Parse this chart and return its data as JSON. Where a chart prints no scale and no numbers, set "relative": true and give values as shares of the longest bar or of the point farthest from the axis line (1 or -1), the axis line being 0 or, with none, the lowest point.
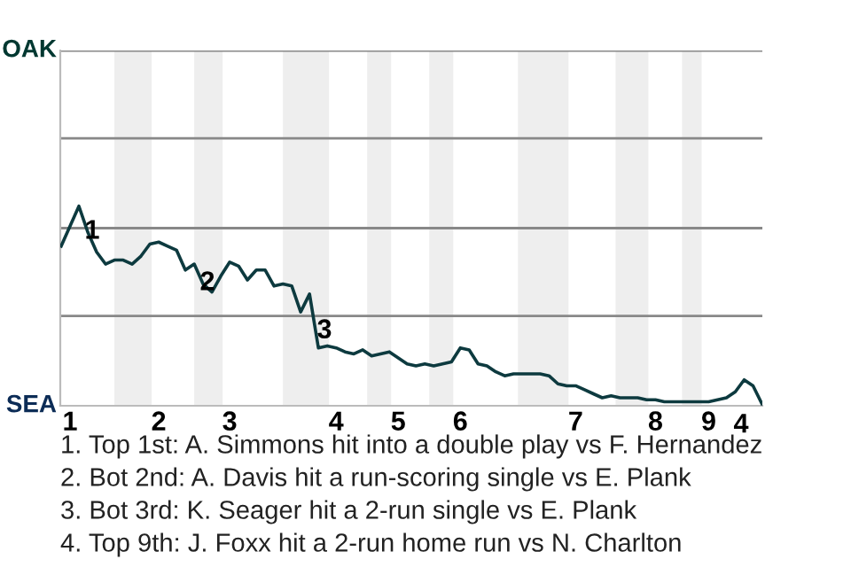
{
  "chart_data": {
    "type": "line",
    "relative": true,
    "categories": [
      null,
      "1",
      null,
      null,
      null,
      null,
      null,
      null,
      null,
      null,
      null,
      "2",
      null,
      null,
      null,
      null,
      null,
      null,
      null,
      "3",
      null,
      null,
      null,
      null,
      null,
      null,
      null,
      null,
      null,
      null,
      null,
      "4",
      null,
      null,
      null,
      null,
      null,
      null,
      "5",
      null,
      null,
      null,
      null,
      null,
      null,
      "6",
      null,
      null,
      null,
      null,
      null,
      null,
      null,
      null,
      null,
      null,
      null,
      null,
      "7",
      null,
      null,
      null,
      null,
      null,
      null,
      null,
      null,
      "8",
      null,
      null,
      null,
      null,
      null,
      "9",
      null,
      null,
      null,
      null,
      null,
      null
    ],
    "series": [
      {
        "color": "#0d3a3f",
        "values": [
          0.8,
          0.9,
          1,
          0.87,
          0.77,
          0.71,
          0.73,
          0.73,
          0.71,
          0.75,
          0.81,
          0.82,
          0.8,
          0.78,
          0.68,
          0.71,
          0.61,
          0.57,
          0.65,
          0.72,
          0.7,
          0.63,
          0.68,
          0.68,
          0.6,
          0.61,
          0.6,
          0.47,
          0.56,
          0.29,
          0.3,
          0.29,
          0.27,
          0.26,
          0.28,
          0.25,
          0.26,
          0.27,
          0.24,
          0.21,
          0.2,
          0.21,
          0.2,
          0.21,
          0.22,
          0.29,
          0.28,
          0.21,
          0.2,
          0.17,
          0.15,
          0.16,
          0.16,
          0.16,
          0.16,
          0.15,
          0.11,
          0.1,
          0.1,
          0.08,
          0.06,
          0.04,
          0.05,
          0.04,
          0.04,
          0.04,
          0.03,
          0.03,
          0.02,
          0.02,
          0.02,
          0.02,
          0.02,
          0.02,
          0.03,
          0.04,
          0.07,
          0.13,
          0.1,
          0.01
        ]
      }
    ],
    "ref_lines": [
      {
        "axis": "y",
        "value": 0.45,
        "color": "#888888"
      },
      {
        "axis": "y",
        "value": 0.89,
        "color": "#888888"
      },
      {
        "axis": "y",
        "value": 1.34,
        "color": "#888888"
      },
      {
        "axis": "y",
        "value": 1.78,
        "color": "#888888"
      }
    ],
    "legend": false,
    "marker": "none",
    "line_style": "solid",
    "annotations": [
      "1",
      "2",
      "3",
      "4",
      "OAK",
      "SEA",
      "1. Top 1st: A. Simmons hit into a double play vs F. Hernandez",
      "2. Bot 2nd: A. Davis hit a run-scoring single vs E. Plank",
      "3. Bot 3rd: K. Seager hit a 2-run single vs E. Plank",
      "4. Top 9th: J. Foxx hit a 2-run home run vs N. Charlton"
    ]
  }
}
